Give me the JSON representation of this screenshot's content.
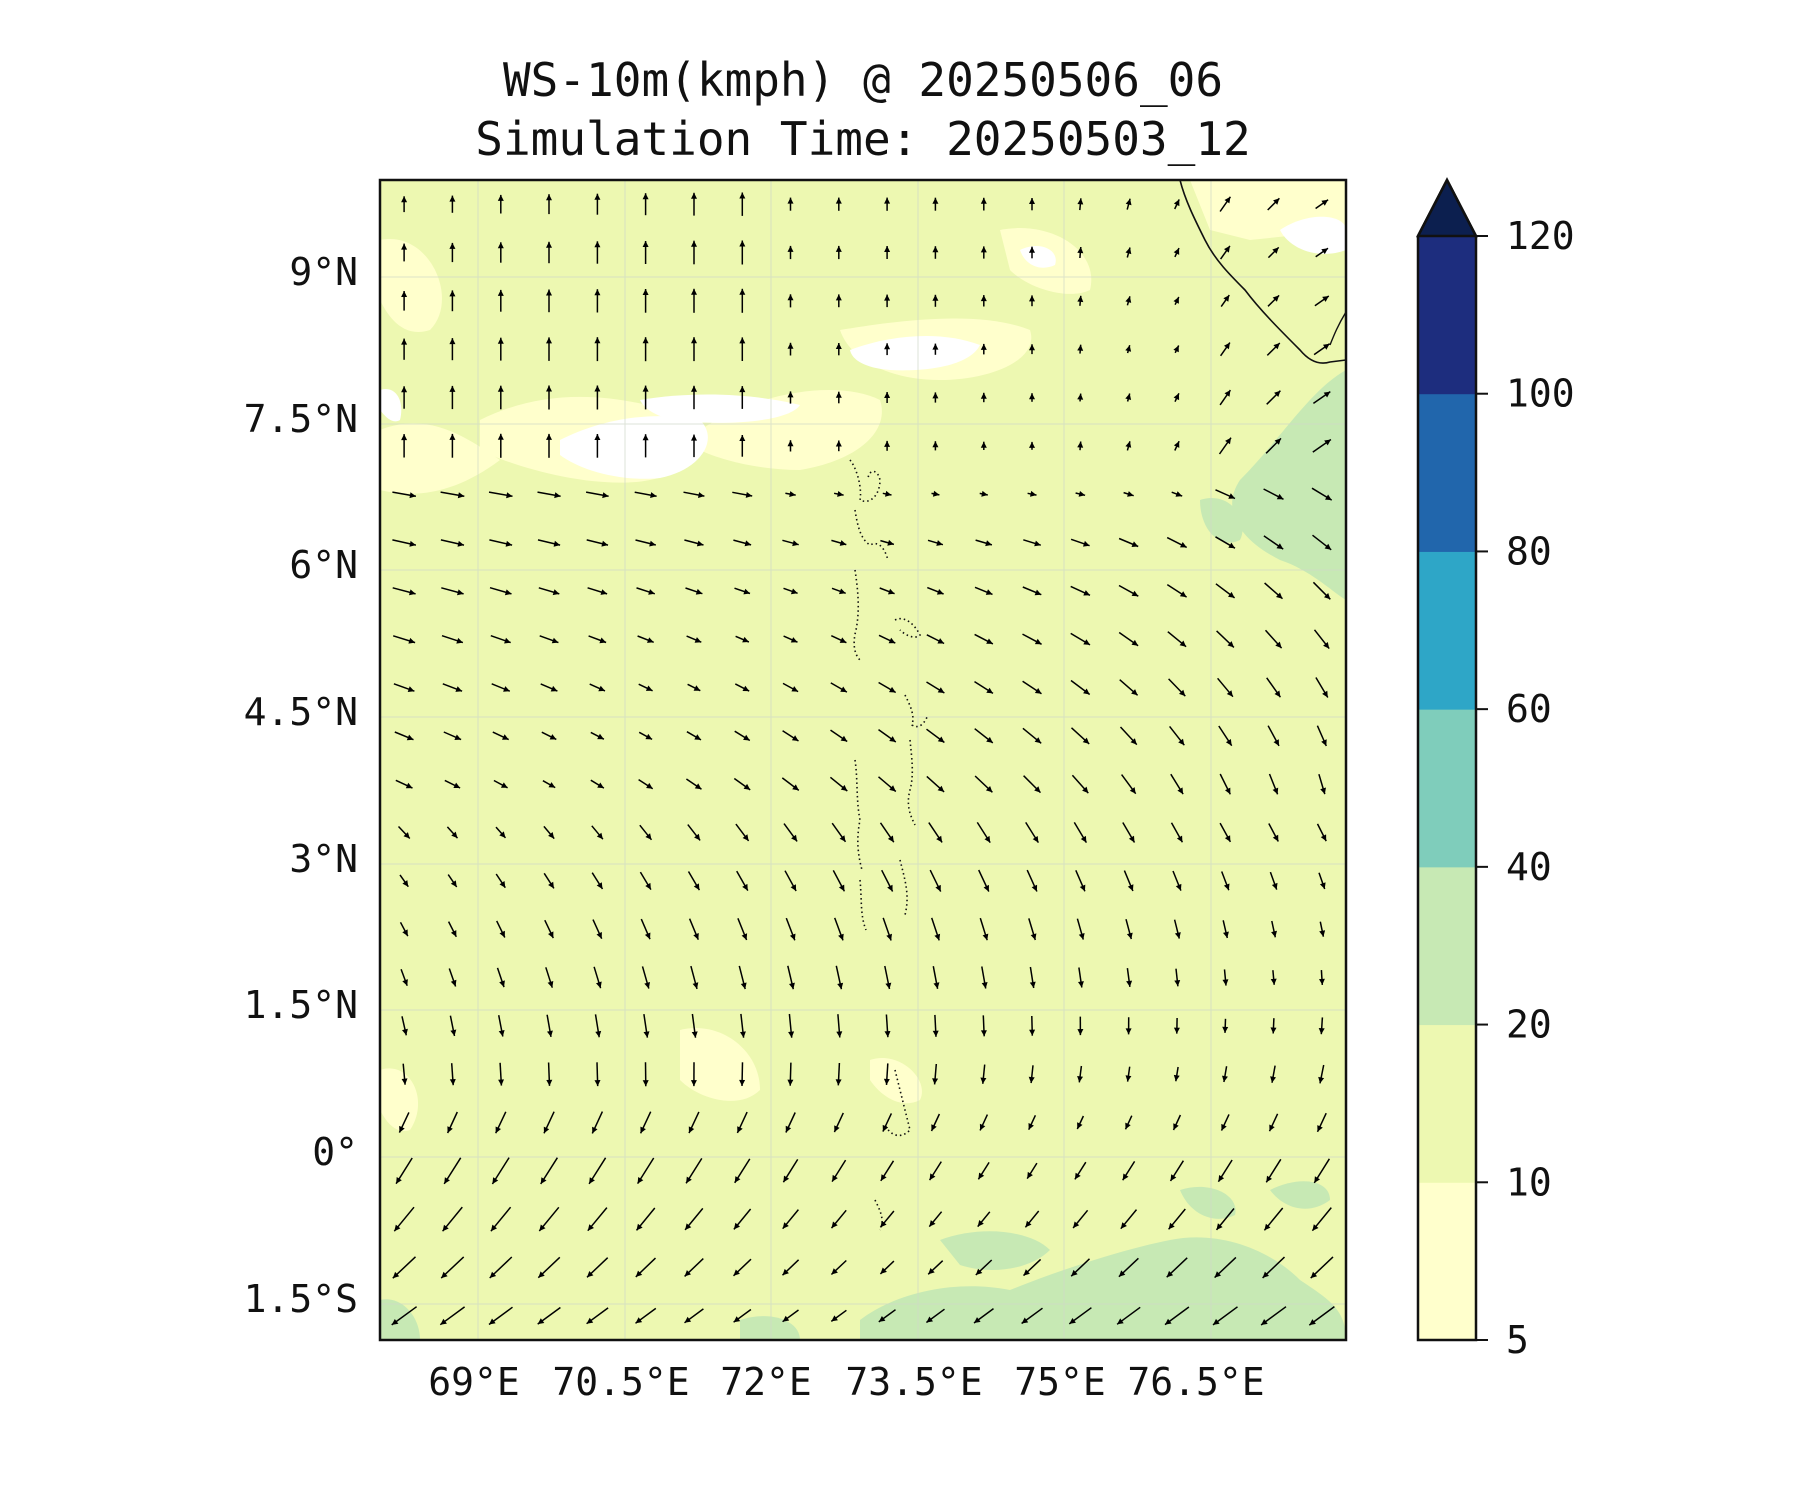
{
  "title_line1": "WS-10m(kmph) @ 20250506_06",
  "title_line2": "Simulation Time: 20250503_12",
  "map": {
    "lat_labels": [
      "9°N",
      "7.5°N",
      "6°N",
      "4.5°N",
      "3°N",
      "1.5°N",
      "0°",
      "1.5°S"
    ],
    "lon_labels": [
      "69°E",
      "70.5°E",
      "72°E",
      "73.5°E",
      "75°E",
      "76.5°E"
    ],
    "lat_values": [
      9,
      7.5,
      6,
      4.5,
      3,
      1.5,
      0,
      -1.5
    ],
    "lon_values": [
      69,
      70.5,
      72,
      73.5,
      75,
      76.5
    ],
    "extent": {
      "lon_min": 68.0,
      "lon_max": 77.85,
      "lat_min": -1.95,
      "lat_max": 9.9
    },
    "field": "10 m wind speed (kmph) with wind direction arrows",
    "dominant_speed_band": "10-20"
  },
  "colorbar": {
    "tick_labels": [
      "5",
      "10",
      "20",
      "40",
      "60",
      "80",
      "100",
      "120"
    ],
    "levels": [
      5,
      10,
      20,
      40,
      60,
      80,
      100,
      120
    ],
    "colors": [
      "#ffffcc",
      "#edf8b1",
      "#c7e9b4",
      "#7fcdbb",
      "#2ea6c7",
      "#2166ac",
      "#1d2d7e"
    ],
    "extend_color": "#0c1f4f"
  },
  "colors": {
    "background": "#ffffff",
    "frame": "#111111",
    "arrow": "#000000",
    "white_patch": "#ffffff",
    "low_speed": "#ffffcc",
    "mid_speed": "#edf8b1",
    "high_speed": "#c7e9b4"
  }
}
